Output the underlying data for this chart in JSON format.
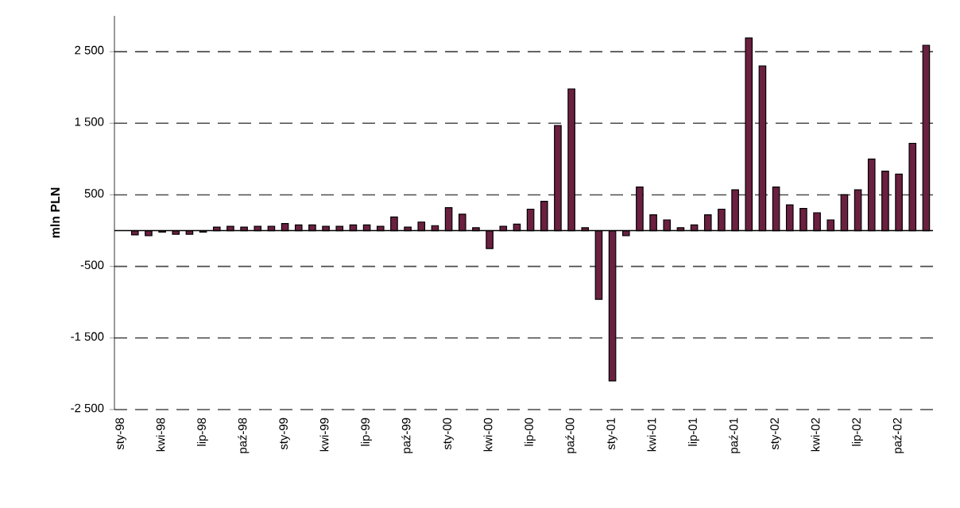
{
  "chart_data": {
    "type": "bar",
    "ylabel": "mln PLN",
    "categories": [
      "sty-98",
      null,
      null,
      "kwi-98",
      null,
      null,
      "lip-98",
      null,
      null,
      "paź-98",
      null,
      null,
      "sty-99",
      null,
      null,
      "kwi-99",
      null,
      null,
      "lip-99",
      null,
      null,
      "paź-99",
      null,
      null,
      "sty-00",
      null,
      null,
      "kwi-00",
      null,
      null,
      "lip-00",
      null,
      null,
      "paź-00",
      null,
      null,
      "sty-01",
      null,
      null,
      "kwi-01",
      null,
      null,
      "lip-01",
      null,
      null,
      "paź-01",
      null,
      null,
      "sty-02",
      null,
      null,
      "kwi-02",
      null,
      null,
      "lip-02",
      null,
      null,
      "paź-02",
      null,
      null
    ],
    "values": [
      null,
      -60,
      -70,
      -20,
      -50,
      -50,
      -20,
      50,
      60,
      50,
      60,
      60,
      100,
      80,
      80,
      60,
      60,
      80,
      80,
      60,
      190,
      50,
      120,
      70,
      320,
      230,
      40,
      -250,
      60,
      90,
      300,
      410,
      1470,
      1980,
      40,
      -960,
      -2100,
      -70,
      610,
      220,
      150,
      40,
      80,
      220,
      300,
      570,
      2690,
      2300,
      610,
      360,
      310,
      250,
      150,
      500,
      570,
      1000,
      830,
      790,
      1220,
      2590
    ],
    "color": "#6b2040",
    "ylim": [
      -2500,
      3000
    ],
    "yticks": [
      {
        "value": -2500,
        "label": "-2 500"
      },
      {
        "value": -1500,
        "label": "-1 500"
      },
      {
        "value": -500,
        "label": "-500"
      },
      {
        "value": 500,
        "label": "500"
      },
      {
        "value": 1500,
        "label": "1 500"
      },
      {
        "value": 2500,
        "label": "2 500"
      }
    ],
    "grid": "y"
  }
}
